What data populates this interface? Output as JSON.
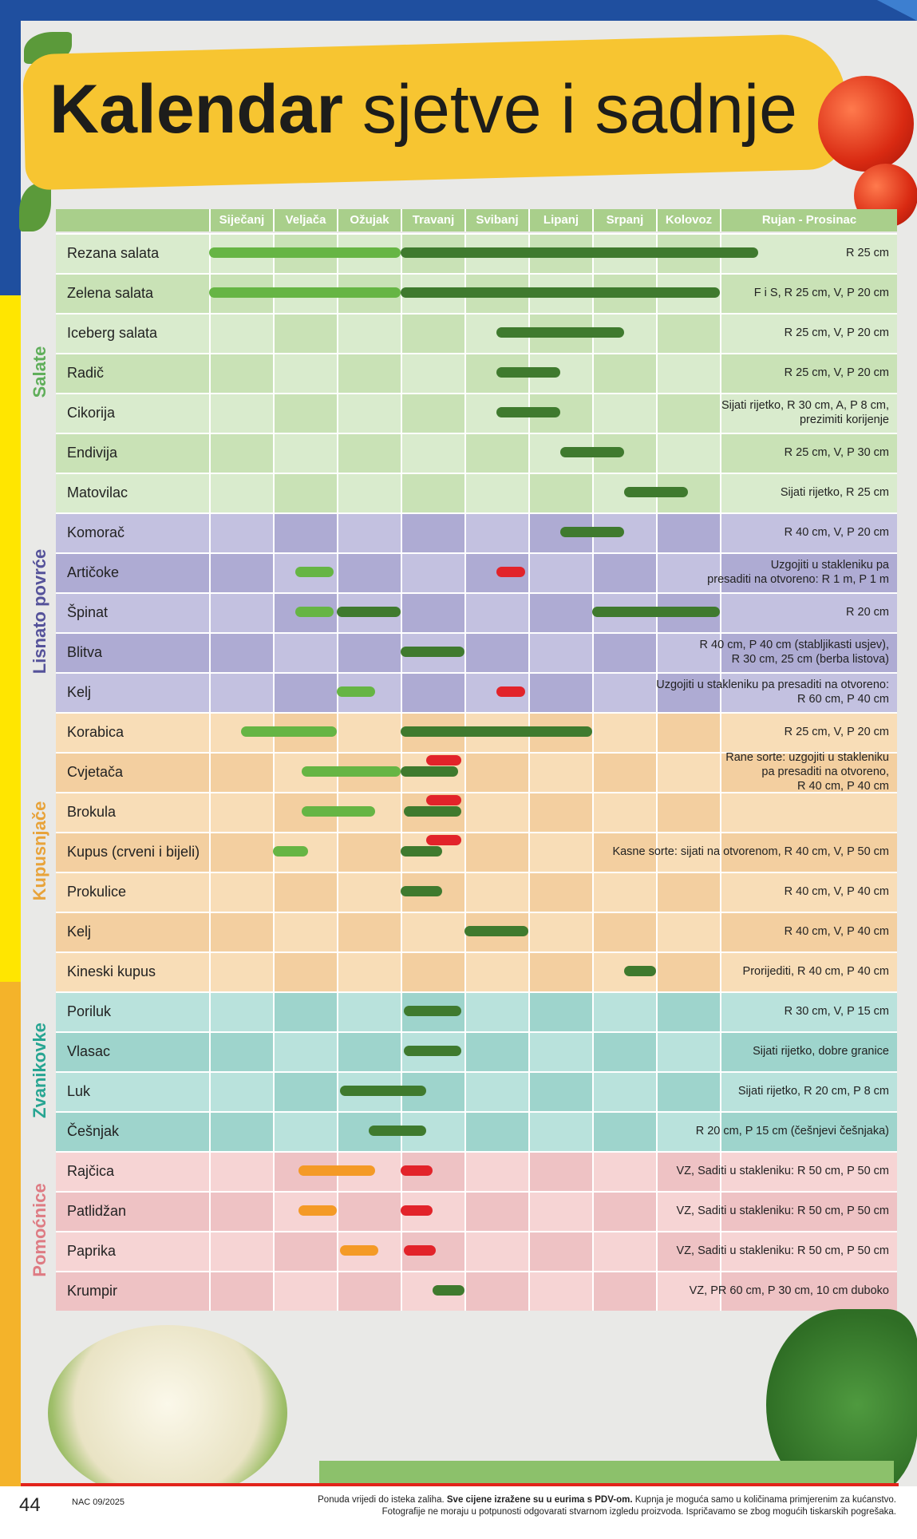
{
  "title": {
    "bold": "Kalendar",
    "light": "sjetve i sadnje"
  },
  "months": [
    "Siječanj",
    "Veljača",
    "Ožujak",
    "Travanj",
    "Svibanj",
    "Lipanj",
    "Srpanj",
    "Kolovoz",
    "Rujan - Prosinac"
  ],
  "colors": {
    "bar_light_green": "#66b544",
    "bar_dark_green": "#3f7a2e",
    "bar_red": "#e2232a",
    "bar_orange": "#f49a26",
    "salate": "#d9ebcd",
    "salate_alt": "#c9e2b6",
    "lisnato": "#c3c1e0",
    "lisnato_alt": "#aeabd3",
    "kupusnjace": "#f8ddb7",
    "kupusnjace_alt": "#f3cfa0",
    "zvanikovke": "#b9e2dc",
    "zvanikovke_alt": "#9ed4cc",
    "pomocnice": "#f6d4d4",
    "pomocnice_alt": "#eec2c4",
    "label_salate": "#5fae5a",
    "label_lisnato": "#55529a",
    "label_kupusnjace": "#e8a33a",
    "label_zvanikovke": "#27a592",
    "label_pomocnice": "#de7b83"
  },
  "sections": [
    {
      "label": "Salate",
      "key": "salate",
      "rows": [
        {
          "name": "Rezana salata",
          "note": [
            "R 25 cm"
          ],
          "bars": [
            {
              "s": 0,
              "e": 3,
              "c": "bar_light_green"
            },
            {
              "s": 3,
              "e": 8.6,
              "c": "bar_dark_green"
            }
          ]
        },
        {
          "name": "Zelena salata",
          "note": [
            "F i S, R 25 cm, V, P 20 cm"
          ],
          "bars": [
            {
              "s": 0,
              "e": 3,
              "c": "bar_light_green"
            },
            {
              "s": 3,
              "e": 8,
              "c": "bar_dark_green"
            }
          ]
        },
        {
          "name": "Iceberg salata",
          "note": [
            "R 25 cm, V, P 20 cm"
          ],
          "bars": [
            {
              "s": 4.5,
              "e": 6.5,
              "c": "bar_dark_green"
            }
          ]
        },
        {
          "name": "Radič",
          "note": [
            "R 25 cm, V, P 20 cm"
          ],
          "bars": [
            {
              "s": 4.5,
              "e": 5.5,
              "c": "bar_dark_green"
            }
          ]
        },
        {
          "name": "Cikorija",
          "note": [
            "Sijati rijetko, R 30 cm, A, P 8 cm,",
            "prezimiti korijenje"
          ],
          "bars": [
            {
              "s": 4.5,
              "e": 5.5,
              "c": "bar_dark_green"
            }
          ]
        },
        {
          "name": "Endivija",
          "note": [
            "R 25 cm, V, P 30 cm"
          ],
          "bars": [
            {
              "s": 5.5,
              "e": 6.5,
              "c": "bar_dark_green"
            }
          ]
        },
        {
          "name": "Matovilac",
          "note": [
            "Sijati rijetko, R 25 cm"
          ],
          "bars": [
            {
              "s": 6.5,
              "e": 7.5,
              "c": "bar_dark_green"
            }
          ]
        }
      ]
    },
    {
      "label": "Lisnato povrće",
      "key": "lisnato",
      "rows": [
        {
          "name": "Komorač",
          "note": [
            "R 40 cm, V, P 20 cm"
          ],
          "bars": [
            {
              "s": 5.5,
              "e": 6.5,
              "c": "bar_dark_green"
            }
          ]
        },
        {
          "name": "Artičoke",
          "note": [
            "Uzgojiti u stakleniku pa",
            "presaditi na otvoreno: R 1 m, P 1 m"
          ],
          "bars": [
            {
              "s": 1.35,
              "e": 1.95,
              "c": "bar_light_green"
            },
            {
              "s": 4.5,
              "e": 4.95,
              "c": "bar_red"
            }
          ]
        },
        {
          "name": "Špinat",
          "note": [
            "R 20 cm"
          ],
          "bars": [
            {
              "s": 1.35,
              "e": 1.95,
              "c": "bar_light_green"
            },
            {
              "s": 2,
              "e": 3,
              "c": "bar_dark_green"
            },
            {
              "s": 6,
              "e": 8,
              "c": "bar_dark_green"
            }
          ]
        },
        {
          "name": "Blitva",
          "note": [
            "R 40 cm, P 40 cm (stabljikasti usjev),",
            "R 30 cm,  25 cm (berba listova)"
          ],
          "bars": [
            {
              "s": 3,
              "e": 4,
              "c": "bar_dark_green"
            }
          ]
        },
        {
          "name": "Kelj",
          "note": [
            "Uzgojiti u stakleniku pa presaditi na otvoreno:",
            "R 60 cm, P 40 cm"
          ],
          "bars": [
            {
              "s": 2,
              "e": 2.6,
              "c": "bar_light_green"
            },
            {
              "s": 4.5,
              "e": 4.95,
              "c": "bar_red"
            }
          ]
        }
      ]
    },
    {
      "label": "Kupusnjače",
      "key": "kupusnjace",
      "rows": [
        {
          "name": "Korabica",
          "note": [
            "R 25 cm, V, P 20 cm"
          ],
          "bars": [
            {
              "s": 0.5,
              "e": 2,
              "c": "bar_light_green"
            },
            {
              "s": 3,
              "e": 6,
              "c": "bar_dark_green"
            }
          ]
        },
        {
          "name": "Cvjetača",
          "note": [
            "Rane sorte: uzgojiti u stakleniku",
            "pa presaditi na otvoreno,",
            "R 40 cm, P 40 cm"
          ],
          "bars": [
            {
              "s": 1.45,
              "e": 3,
              "c": "bar_light_green"
            },
            {
              "s": 3,
              "e": 3.9,
              "c": "bar_dark_green"
            },
            {
              "s": 3.4,
              "e": 3.95,
              "c": "bar_red",
              "up": true
            }
          ]
        },
        {
          "name": "Brokula",
          "note": [],
          "bars": [
            {
              "s": 1.45,
              "e": 2.6,
              "c": "bar_light_green"
            },
            {
              "s": 3.05,
              "e": 3.95,
              "c": "bar_dark_green"
            },
            {
              "s": 3.4,
              "e": 3.95,
              "c": "bar_red",
              "up": true
            }
          ]
        },
        {
          "name": "Kupus (crveni i bijeli)",
          "note": [
            "Kasne sorte: sijati na otvorenom, R 40 cm, V, P 50 cm"
          ],
          "bars": [
            {
              "s": 1,
              "e": 1.55,
              "c": "bar_light_green"
            },
            {
              "s": 3,
              "e": 3.65,
              "c": "bar_dark_green"
            },
            {
              "s": 3.4,
              "e": 3.95,
              "c": "bar_red",
              "up": true
            }
          ]
        },
        {
          "name": "Prokulice",
          "note": [
            "R 40 cm, V, P 40 cm"
          ],
          "bars": [
            {
              "s": 3,
              "e": 3.65,
              "c": "bar_dark_green"
            }
          ]
        },
        {
          "name": "Kelj",
          "note": [
            "R 40 cm, V, P 40 cm"
          ],
          "bars": [
            {
              "s": 4,
              "e": 5,
              "c": "bar_dark_green"
            }
          ]
        },
        {
          "name": "Kineski kupus",
          "note": [
            "Prorijediti, R 40 cm, P 40 cm"
          ],
          "bars": [
            {
              "s": 6.5,
              "e": 7,
              "c": "bar_dark_green"
            }
          ]
        }
      ]
    },
    {
      "label": "Zvanikovke",
      "key": "zvanikovke",
      "rows": [
        {
          "name": "Poriluk",
          "note": [
            "R 30 cm, V, P 15 cm"
          ],
          "bars": [
            {
              "s": 3.05,
              "e": 3.95,
              "c": "bar_dark_green"
            }
          ]
        },
        {
          "name": "Vlasac",
          "note": [
            "Sijati rijetko, dobre granice"
          ],
          "bars": [
            {
              "s": 3.05,
              "e": 3.95,
              "c": "bar_dark_green"
            }
          ]
        },
        {
          "name": "Luk",
          "note": [
            "Sijati rijetko, R 20 cm, P 8 cm"
          ],
          "bars": [
            {
              "s": 2.05,
              "e": 3.4,
              "c": "bar_dark_green"
            }
          ]
        },
        {
          "name": "Češnjak",
          "note": [
            "R 20 cm, P 15 cm (češnjevi češnjaka)"
          ],
          "bars": [
            {
              "s": 2.5,
              "e": 3.4,
              "c": "bar_dark_green"
            }
          ]
        }
      ]
    },
    {
      "label": "Pomoćnice",
      "key": "pomocnice",
      "rows": [
        {
          "name": "Rajčica",
          "note": [
            "VZ, Saditi u stakleniku: R 50 cm, P 50 cm"
          ],
          "bars": [
            {
              "s": 1.4,
              "e": 2.6,
              "c": "bar_orange"
            },
            {
              "s": 3,
              "e": 3.5,
              "c": "bar_red"
            }
          ]
        },
        {
          "name": "Patlidžan",
          "note": [
            "VZ, Saditi u stakleniku: R 50 cm, P 50 cm"
          ],
          "bars": [
            {
              "s": 1.4,
              "e": 2,
              "c": "bar_orange"
            },
            {
              "s": 3,
              "e": 3.5,
              "c": "bar_red"
            }
          ]
        },
        {
          "name": "Paprika",
          "note": [
            "VZ, Saditi u stakleniku: R 50 cm, P 50 cm"
          ],
          "bars": [
            {
              "s": 2.05,
              "e": 2.65,
              "c": "bar_orange"
            },
            {
              "s": 3.05,
              "e": 3.55,
              "c": "bar_red"
            }
          ]
        },
        {
          "name": "Krumpir",
          "note": [
            "VZ, PR 60 cm, P 30 cm, 10 cm duboko"
          ],
          "bars": [
            {
              "s": 3.5,
              "e": 4,
              "c": "bar_dark_green"
            }
          ]
        }
      ]
    }
  ],
  "footer": {
    "page": "44",
    "code": "NAC 09/2025",
    "line1_a": "Ponuda vrijedi do isteka zaliha. ",
    "line1_b": "Sve cijene izražene su u eurima s PDV-om.",
    "line1_c": " Kupnja je moguća samo u količinama primjerenim za kućanstvo.",
    "line2": "Fotografije ne moraju u potpunosti odgovarati stvarnom izgledu proizvoda. Ispričavamo se zbog mogućih tiskarskih pogrešaka."
  }
}
